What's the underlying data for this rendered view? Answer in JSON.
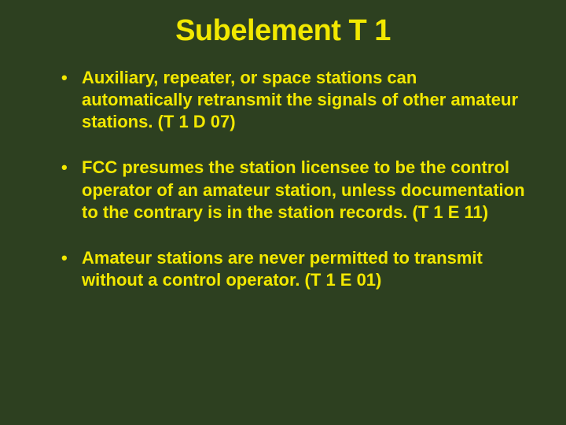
{
  "slide": {
    "background_color": "#2d4020",
    "text_color": "#f2e800",
    "title": "Subelement T 1",
    "title_fontsize": 38,
    "body_fontsize": 22,
    "bullets": [
      "Auxiliary, repeater, or space stations can automatically retransmit the signals of other amateur stations. (T 1 D 07)",
      "FCC presumes the station licensee to be the control operator of an amateur station, unless documentation to the contrary is in the station records. (T 1 E 11)",
      "Amateur stations are never permitted to transmit without a control operator. (T 1 E 01)"
    ]
  }
}
